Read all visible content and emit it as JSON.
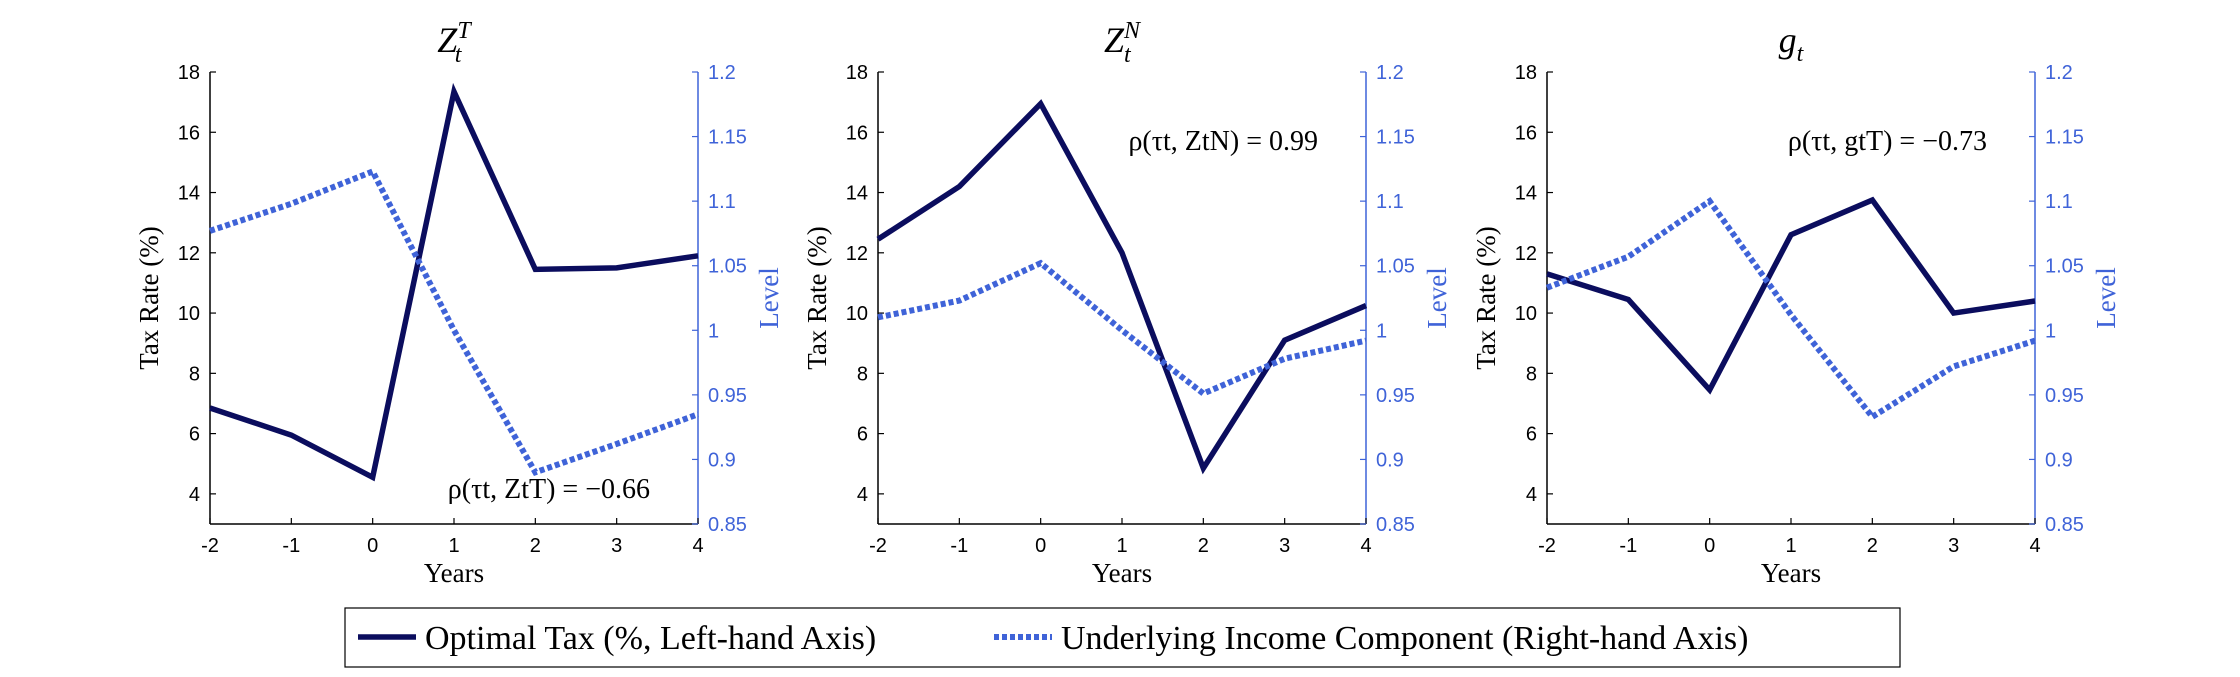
{
  "colors": {
    "tax_line": "#0b0d5e",
    "income_line": "#3f63d8",
    "right_axis": "#3f63d8",
    "axis": "#000000"
  },
  "chart_data": [
    {
      "type": "line",
      "title_base": "Z",
      "title_sub": "t",
      "title_sup": "T",
      "xlabel": "Years",
      "ylabel_left": "Tax Rate (%)",
      "ylabel_right": "Level",
      "x": [
        -2,
        -1,
        0,
        1,
        2,
        3,
        4
      ],
      "x_ticks": [
        "-2",
        "-1",
        "0",
        "1",
        "2",
        "3",
        "4"
      ],
      "ylim_left": [
        3,
        18
      ],
      "ylim_right": [
        0.85,
        1.2
      ],
      "yticks_left": [
        "4",
        "6",
        "8",
        "10",
        "12",
        "14",
        "16",
        "18"
      ],
      "yticks_right": [
        "0.85",
        "0.9",
        "0.95",
        "1",
        "1.05",
        "1.1",
        "1.15",
        "1.2"
      ],
      "annotation": "ρ(τt, ZtT) = −0.66",
      "annotation_placement": "bottom-right",
      "series": [
        {
          "axis": "left",
          "style": "solid",
          "values": [
            6.85,
            5.95,
            4.55,
            17.35,
            11.45,
            11.5,
            11.9
          ]
        },
        {
          "axis": "right",
          "style": "dotted",
          "values": [
            1.077,
            1.098,
            1.123,
            1.0,
            0.89,
            0.912,
            0.935
          ]
        }
      ]
    },
    {
      "type": "line",
      "title_base": "Z",
      "title_sub": "t",
      "title_sup": "N",
      "xlabel": "Years",
      "ylabel_left": "Tax Rate (%)",
      "ylabel_right": "Level",
      "x": [
        -2,
        -1,
        0,
        1,
        2,
        3,
        4
      ],
      "x_ticks": [
        "-2",
        "-1",
        "0",
        "1",
        "2",
        "3",
        "4"
      ],
      "ylim_left": [
        3,
        18
      ],
      "ylim_right": [
        0.85,
        1.2
      ],
      "yticks_left": [
        "4",
        "6",
        "8",
        "10",
        "12",
        "14",
        "16",
        "18"
      ],
      "yticks_right": [
        "0.85",
        "0.9",
        "0.95",
        "1",
        "1.05",
        "1.1",
        "1.15",
        "1.2"
      ],
      "annotation": "ρ(τt, ZtN) = 0.99",
      "annotation_placement": "top-right",
      "series": [
        {
          "axis": "left",
          "style": "solid",
          "values": [
            12.45,
            14.2,
            16.95,
            12.0,
            4.85,
            9.1,
            10.25
          ]
        },
        {
          "axis": "right",
          "style": "dotted",
          "values": [
            1.01,
            1.023,
            1.052,
            1.0,
            0.951,
            0.978,
            0.992
          ]
        }
      ]
    },
    {
      "type": "line",
      "title_base": "g",
      "title_sub": "t",
      "title_sup": "",
      "xlabel": "Years",
      "ylabel_left": "Tax Rate (%)",
      "ylabel_right": "Level",
      "x": [
        -2,
        -1,
        0,
        1,
        2,
        3,
        4
      ],
      "x_ticks": [
        "-2",
        "-1",
        "0",
        "1",
        "2",
        "3",
        "4"
      ],
      "ylim_left": [
        3,
        18
      ],
      "ylim_right": [
        0.85,
        1.2
      ],
      "yticks_left": [
        "4",
        "6",
        "8",
        "10",
        "12",
        "14",
        "16",
        "18"
      ],
      "yticks_right": [
        "0.85",
        "0.9",
        "0.95",
        "1",
        "1.05",
        "1.1",
        "1.15",
        "1.2"
      ],
      "annotation": "ρ(τt, gtT) = −0.73",
      "annotation_placement": "top-right",
      "series": [
        {
          "axis": "left",
          "style": "solid",
          "values": [
            11.3,
            10.45,
            7.45,
            12.6,
            13.75,
            10.0,
            10.4
          ]
        },
        {
          "axis": "right",
          "style": "dotted",
          "values": [
            1.033,
            1.057,
            1.1,
            1.012,
            0.933,
            0.972,
            0.992
          ]
        }
      ]
    }
  ],
  "legend": {
    "items": [
      {
        "label": "Optimal Tax (%, Left-hand Axis)",
        "style": "solid"
      },
      {
        "label": "Underlying Income Component (Right-hand Axis)",
        "style": "dotted"
      }
    ],
    "placement": "bottom-center"
  }
}
